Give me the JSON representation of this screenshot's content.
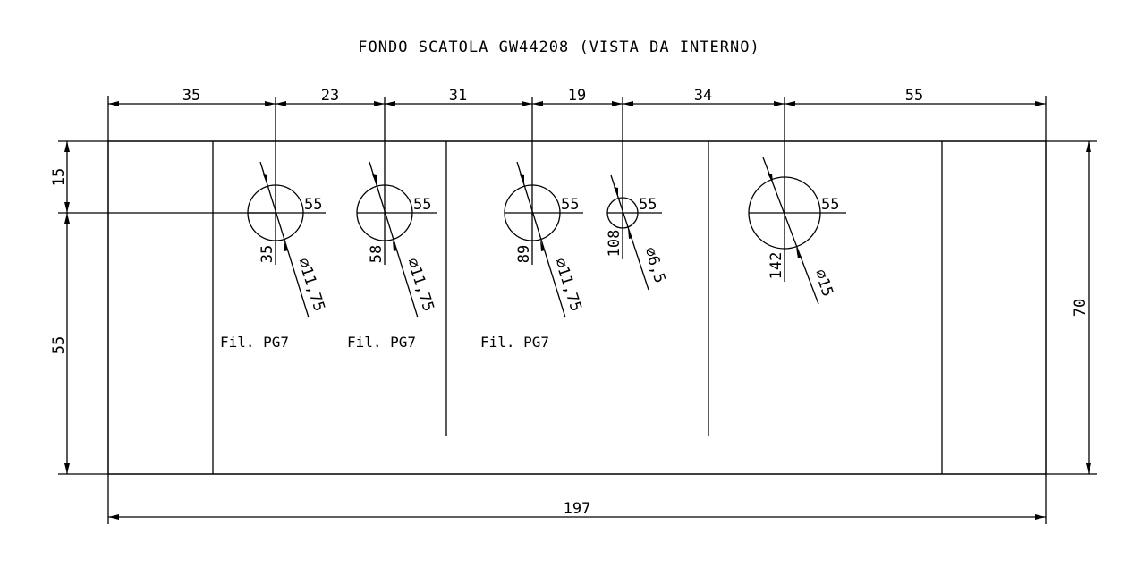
{
  "title": "FONDO SCATOLA GW44208 (VISTA DA INTERNO)",
  "top_dimensions": [
    "35",
    "23",
    "31",
    "19",
    "34",
    "55"
  ],
  "left_dimensions": {
    "upper": "15",
    "lower": "55"
  },
  "right_dimension": "70",
  "bottom_dimension": "197",
  "holes": [
    {
      "x_label": "35",
      "y_label": "55",
      "diameter_label": "⌀11,75",
      "note": "Fil. PG7"
    },
    {
      "x_label": "58",
      "y_label": "55",
      "diameter_label": "⌀11,75",
      "note": "Fil. PG7"
    },
    {
      "x_label": "89",
      "y_label": "55",
      "diameter_label": "⌀11,75",
      "note": "Fil. PG7"
    },
    {
      "x_label": "108",
      "y_label": "55",
      "diameter_label": "⌀6,5",
      "note": ""
    },
    {
      "x_label": "142",
      "y_label": "55",
      "diameter_label": "⌀15",
      "note": ""
    }
  ]
}
